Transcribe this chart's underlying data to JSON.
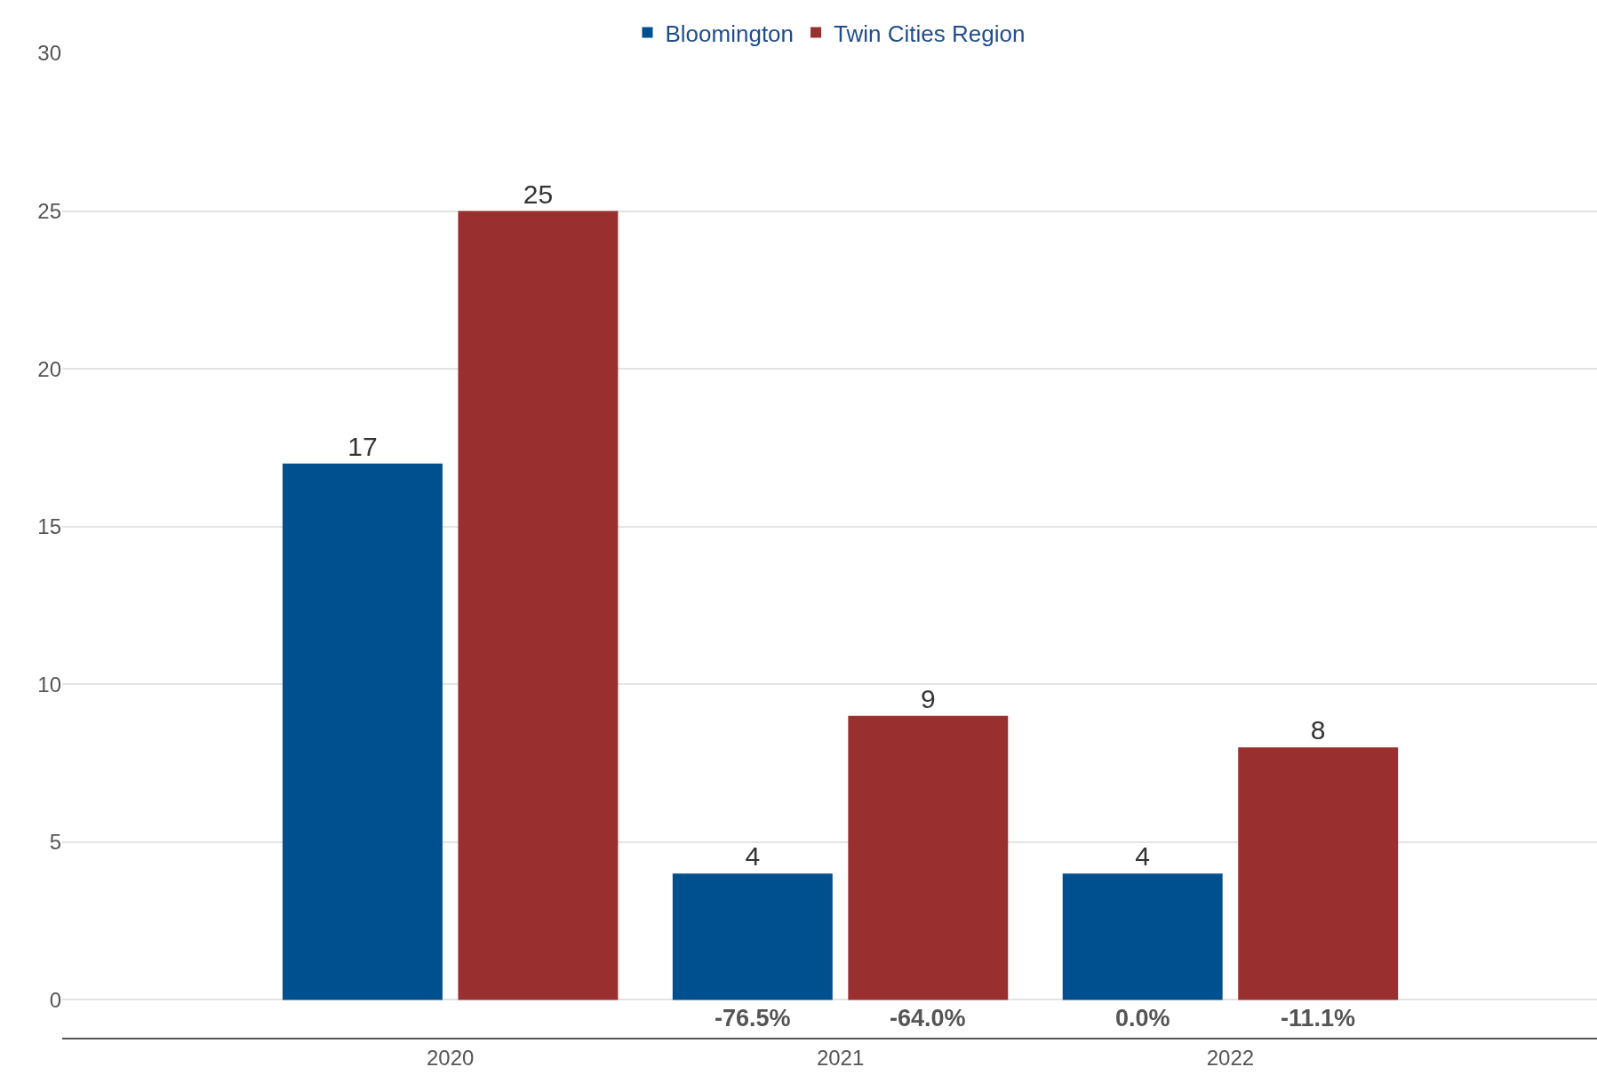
{
  "chart_data": {
    "type": "bar",
    "categories": [
      "2020",
      "2021",
      "2022"
    ],
    "series": [
      {
        "name": "Bloomington",
        "color": "#004f8e",
        "values": [
          17,
          4,
          4
        ]
      },
      {
        "name": "Twin Cities Region",
        "color": "#9a2f2f",
        "values": [
          25,
          9,
          8
        ]
      }
    ],
    "data_labels": true,
    "ylim": [
      -1.2,
      30
    ],
    "yticks": [
      0,
      5,
      10,
      15,
      20,
      25,
      30
    ],
    "grid": "y",
    "legend": "top",
    "annotations": [
      "-76.5%",
      "-64.0%",
      "0.0%",
      "-11.1%"
    ]
  }
}
